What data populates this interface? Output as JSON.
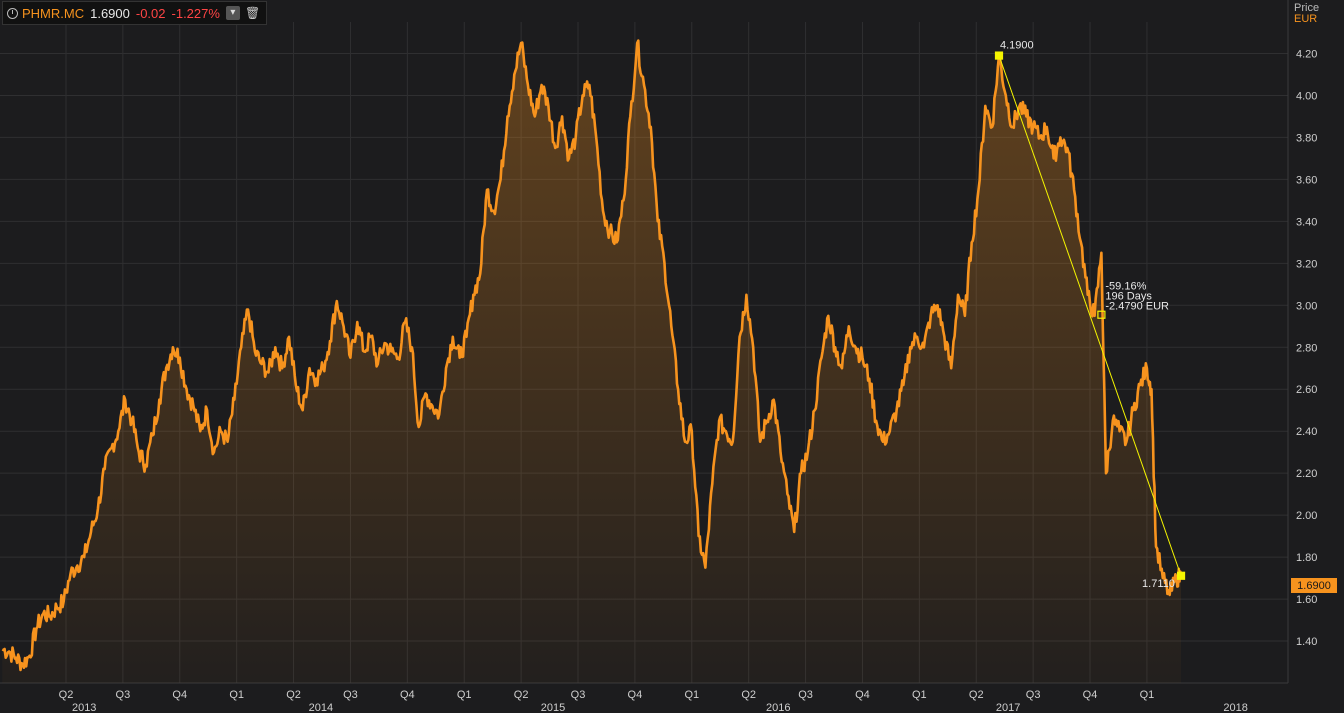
{
  "legend": {
    "symbol": "PHMR.MC",
    "last": "1.6900",
    "change": "-0.02",
    "change_pct": "-1.227%"
  },
  "axis_header": {
    "label": "Price",
    "currency": "EUR"
  },
  "last_price_tag": "1.6900",
  "colors": {
    "line": "#f7931e",
    "trend": "#f5f500",
    "negative": "#ff4545",
    "background": "#1c1c1e",
    "grid": "#2f2f31"
  },
  "chart_data": {
    "type": "area",
    "ylim": [
      1.2,
      4.35
    ],
    "y_ticks": [
      "1.40",
      "1.60",
      "1.80",
      "2.00",
      "2.20",
      "2.40",
      "2.60",
      "2.80",
      "3.00",
      "3.20",
      "3.40",
      "3.60",
      "3.80",
      "4.00",
      "4.20"
    ],
    "x_ticks": [
      {
        "t": 2013.25,
        "label": "Q2"
      },
      {
        "t": 2013.5,
        "label": "Q3"
      },
      {
        "t": 2013.75,
        "label": "Q4"
      },
      {
        "t": 2014.0,
        "label": "Q1"
      },
      {
        "t": 2014.25,
        "label": "Q2"
      },
      {
        "t": 2014.5,
        "label": "Q3"
      },
      {
        "t": 2014.75,
        "label": "Q4"
      },
      {
        "t": 2015.0,
        "label": "Q1"
      },
      {
        "t": 2015.25,
        "label": "Q2"
      },
      {
        "t": 2015.5,
        "label": "Q3"
      },
      {
        "t": 2015.75,
        "label": "Q4"
      },
      {
        "t": 2016.0,
        "label": "Q1"
      },
      {
        "t": 2016.25,
        "label": "Q2"
      },
      {
        "t": 2016.5,
        "label": "Q3"
      },
      {
        "t": 2016.75,
        "label": "Q4"
      },
      {
        "t": 2017.0,
        "label": "Q1"
      },
      {
        "t": 2017.25,
        "label": "Q2"
      },
      {
        "t": 2017.5,
        "label": "Q3"
      },
      {
        "t": 2017.75,
        "label": "Q4"
      },
      {
        "t": 2018.0,
        "label": "Q1"
      }
    ],
    "year_labels": [
      {
        "t": 2013.33,
        "label": "2013"
      },
      {
        "t": 2014.37,
        "label": "2014"
      },
      {
        "t": 2015.39,
        "label": "2015"
      },
      {
        "t": 2016.38,
        "label": "2016"
      },
      {
        "t": 2017.39,
        "label": "2017"
      },
      {
        "t": 2018.39,
        "label": "2018"
      }
    ],
    "xlim": [
      2012.96,
      2018.62
    ],
    "series": [
      {
        "points": [
          [
            2012.97,
            1.36
          ],
          [
            2013.0,
            1.35
          ],
          [
            2013.03,
            1.32
          ],
          [
            2013.06,
            1.29
          ],
          [
            2013.09,
            1.33
          ],
          [
            2013.12,
            1.46
          ],
          [
            2013.15,
            1.53
          ],
          [
            2013.18,
            1.52
          ],
          [
            2013.21,
            1.56
          ],
          [
            2013.24,
            1.59
          ],
          [
            2013.27,
            1.72
          ],
          [
            2013.3,
            1.76
          ],
          [
            2013.33,
            1.8
          ],
          [
            2013.36,
            1.92
          ],
          [
            2013.39,
            2.03
          ],
          [
            2013.42,
            2.22
          ],
          [
            2013.45,
            2.32
          ],
          [
            2013.48,
            2.4
          ],
          [
            2013.51,
            2.55
          ],
          [
            2013.54,
            2.45
          ],
          [
            2013.57,
            2.3
          ],
          [
            2013.6,
            2.24
          ],
          [
            2013.63,
            2.38
          ],
          [
            2013.66,
            2.55
          ],
          [
            2013.69,
            2.7
          ],
          [
            2013.72,
            2.8
          ],
          [
            2013.75,
            2.75
          ],
          [
            2013.78,
            2.6
          ],
          [
            2013.81,
            2.52
          ],
          [
            2013.84,
            2.4
          ],
          [
            2013.87,
            2.5
          ],
          [
            2013.9,
            2.3
          ],
          [
            2013.93,
            2.4
          ],
          [
            2013.96,
            2.35
          ],
          [
            2013.99,
            2.55
          ],
          [
            2014.02,
            2.8
          ],
          [
            2014.05,
            2.98
          ],
          [
            2014.08,
            2.78
          ],
          [
            2014.11,
            2.72
          ],
          [
            2014.14,
            2.68
          ],
          [
            2014.17,
            2.8
          ],
          [
            2014.2,
            2.7
          ],
          [
            2014.23,
            2.85
          ],
          [
            2014.26,
            2.62
          ],
          [
            2014.29,
            2.5
          ],
          [
            2014.32,
            2.7
          ],
          [
            2014.35,
            2.65
          ],
          [
            2014.38,
            2.7
          ],
          [
            2014.41,
            2.83
          ],
          [
            2014.44,
            3.02
          ],
          [
            2014.47,
            2.9
          ],
          [
            2014.5,
            2.75
          ],
          [
            2014.53,
            2.92
          ],
          [
            2014.56,
            2.78
          ],
          [
            2014.59,
            2.85
          ],
          [
            2014.62,
            2.72
          ],
          [
            2014.65,
            2.82
          ],
          [
            2014.68,
            2.78
          ],
          [
            2014.71,
            2.75
          ],
          [
            2014.74,
            2.92
          ],
          [
            2014.77,
            2.8
          ],
          [
            2014.8,
            2.42
          ],
          [
            2014.83,
            2.58
          ],
          [
            2014.86,
            2.52
          ],
          [
            2014.89,
            2.48
          ],
          [
            2014.92,
            2.7
          ],
          [
            2014.95,
            2.85
          ],
          [
            2014.98,
            2.75
          ],
          [
            2015.01,
            2.85
          ],
          [
            2015.04,
            3.05
          ],
          [
            2015.07,
            3.15
          ],
          [
            2015.1,
            3.55
          ],
          [
            2015.13,
            3.45
          ],
          [
            2015.16,
            3.6
          ],
          [
            2015.19,
            3.9
          ],
          [
            2015.22,
            4.1
          ],
          [
            2015.25,
            4.25
          ],
          [
            2015.28,
            4.05
          ],
          [
            2015.31,
            3.9
          ],
          [
            2015.34,
            4.05
          ],
          [
            2015.37,
            3.95
          ],
          [
            2015.4,
            3.75
          ],
          [
            2015.43,
            3.9
          ],
          [
            2015.46,
            3.7
          ],
          [
            2015.49,
            3.8
          ],
          [
            2015.52,
            4.0
          ],
          [
            2015.55,
            4.05
          ],
          [
            2015.58,
            3.8
          ],
          [
            2015.61,
            3.45
          ],
          [
            2015.64,
            3.35
          ],
          [
            2015.67,
            3.3
          ],
          [
            2015.7,
            3.5
          ],
          [
            2015.73,
            3.9
          ],
          [
            2015.76,
            4.25
          ],
          [
            2015.79,
            4.05
          ],
          [
            2015.82,
            3.85
          ],
          [
            2015.85,
            3.4
          ],
          [
            2015.88,
            3.2
          ],
          [
            2015.91,
            2.9
          ],
          [
            2015.94,
            2.6
          ],
          [
            2015.97,
            2.35
          ],
          [
            2016.0,
            2.4
          ],
          [
            2016.03,
            1.9
          ],
          [
            2016.06,
            1.75
          ],
          [
            2016.09,
            2.15
          ],
          [
            2016.12,
            2.45
          ],
          [
            2016.15,
            2.4
          ],
          [
            2016.18,
            2.35
          ],
          [
            2016.21,
            2.85
          ],
          [
            2016.24,
            3.05
          ],
          [
            2016.27,
            2.8
          ],
          [
            2016.3,
            2.35
          ],
          [
            2016.33,
            2.45
          ],
          [
            2016.36,
            2.55
          ],
          [
            2016.39,
            2.3
          ],
          [
            2016.42,
            2.1
          ],
          [
            2016.45,
            1.92
          ],
          [
            2016.48,
            2.2
          ],
          [
            2016.51,
            2.3
          ],
          [
            2016.54,
            2.5
          ],
          [
            2016.57,
            2.75
          ],
          [
            2016.6,
            2.95
          ],
          [
            2016.63,
            2.8
          ],
          [
            2016.66,
            2.7
          ],
          [
            2016.69,
            2.9
          ],
          [
            2016.72,
            2.8
          ],
          [
            2016.75,
            2.75
          ],
          [
            2016.78,
            2.65
          ],
          [
            2016.81,
            2.45
          ],
          [
            2016.84,
            2.35
          ],
          [
            2016.87,
            2.4
          ],
          [
            2016.9,
            2.5
          ],
          [
            2016.93,
            2.62
          ],
          [
            2016.96,
            2.8
          ],
          [
            2016.99,
            2.85
          ],
          [
            2017.02,
            2.8
          ],
          [
            2017.05,
            2.95
          ],
          [
            2017.08,
            3.0
          ],
          [
            2017.11,
            2.85
          ],
          [
            2017.14,
            2.7
          ],
          [
            2017.17,
            3.05
          ],
          [
            2017.2,
            2.95
          ],
          [
            2017.23,
            3.3
          ],
          [
            2017.26,
            3.55
          ],
          [
            2017.29,
            3.95
          ],
          [
            2017.32,
            3.85
          ],
          [
            2017.35,
            4.19
          ],
          [
            2017.38,
            4.0
          ],
          [
            2017.41,
            3.85
          ],
          [
            2017.44,
            3.95
          ],
          [
            2017.47,
            3.9
          ],
          [
            2017.5,
            3.85
          ],
          [
            2017.53,
            3.8
          ],
          [
            2017.56,
            3.85
          ],
          [
            2017.59,
            3.7
          ],
          [
            2017.62,
            3.8
          ],
          [
            2017.65,
            3.75
          ],
          [
            2017.68,
            3.55
          ],
          [
            2017.71,
            3.3
          ],
          [
            2017.74,
            3.05
          ],
          [
            2017.77,
            2.95
          ],
          [
            2017.8,
            3.25
          ],
          [
            2017.82,
            2.2
          ],
          [
            2017.85,
            2.45
          ],
          [
            2017.88,
            2.4
          ],
          [
            2017.91,
            2.35
          ],
          [
            2017.94,
            2.5
          ],
          [
            2017.97,
            2.62
          ],
          [
            2018.0,
            2.7
          ],
          [
            2018.02,
            2.6
          ],
          [
            2018.04,
            1.85
          ],
          [
            2018.07,
            1.7
          ],
          [
            2018.1,
            1.62
          ],
          [
            2018.13,
            1.7
          ],
          [
            2018.15,
            1.71
          ]
        ]
      }
    ],
    "trendline": {
      "start": {
        "t": 2017.35,
        "v": 4.19
      },
      "end": {
        "t": 2018.15,
        "v": 1.711
      },
      "mid": {
        "t": 2017.8,
        "v": 2.955
      }
    },
    "annotations": {
      "start_label": "4.1900",
      "end_label": "1.7110",
      "pct": "-59.16%",
      "days": "196 Days",
      "amount": "-2.4790 EUR"
    }
  }
}
